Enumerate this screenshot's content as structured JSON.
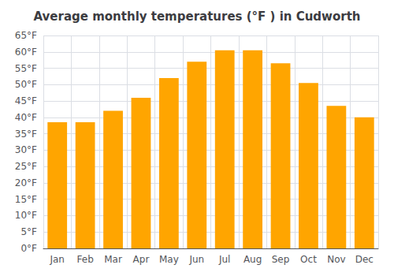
{
  "chart_data": {
    "type": "bar",
    "title": "Average monthly temperatures (°F ) in Cudworth",
    "categories": [
      "Jan",
      "Feb",
      "Mar",
      "Apr",
      "May",
      "Jun",
      "Jul",
      "Aug",
      "Sep",
      "Oct",
      "Nov",
      "Dec"
    ],
    "values": [
      38.5,
      38.5,
      42.0,
      46.0,
      52.0,
      57.0,
      60.5,
      60.5,
      56.5,
      50.5,
      43.5,
      40.0
    ],
    "color": "#FFA500",
    "ylim": [
      0,
      65
    ],
    "yticks": [
      {
        "value": 0,
        "label": "0°F"
      },
      {
        "value": 5,
        "label": "5°F"
      },
      {
        "value": 10,
        "label": "10°F"
      },
      {
        "value": 15,
        "label": "15°F"
      },
      {
        "value": 20,
        "label": "20°F"
      },
      {
        "value": 25,
        "label": "25°F"
      },
      {
        "value": 30,
        "label": "30°F"
      },
      {
        "value": 35,
        "label": "35°F"
      },
      {
        "value": 40,
        "label": "40°F"
      },
      {
        "value": 45,
        "label": "45°F"
      },
      {
        "value": 50,
        "label": "50°F"
      },
      {
        "value": 55,
        "label": "55°F"
      },
      {
        "value": 60,
        "label": "60°F"
      },
      {
        "value": 65,
        "label": "65°F"
      }
    ],
    "grid": true
  }
}
